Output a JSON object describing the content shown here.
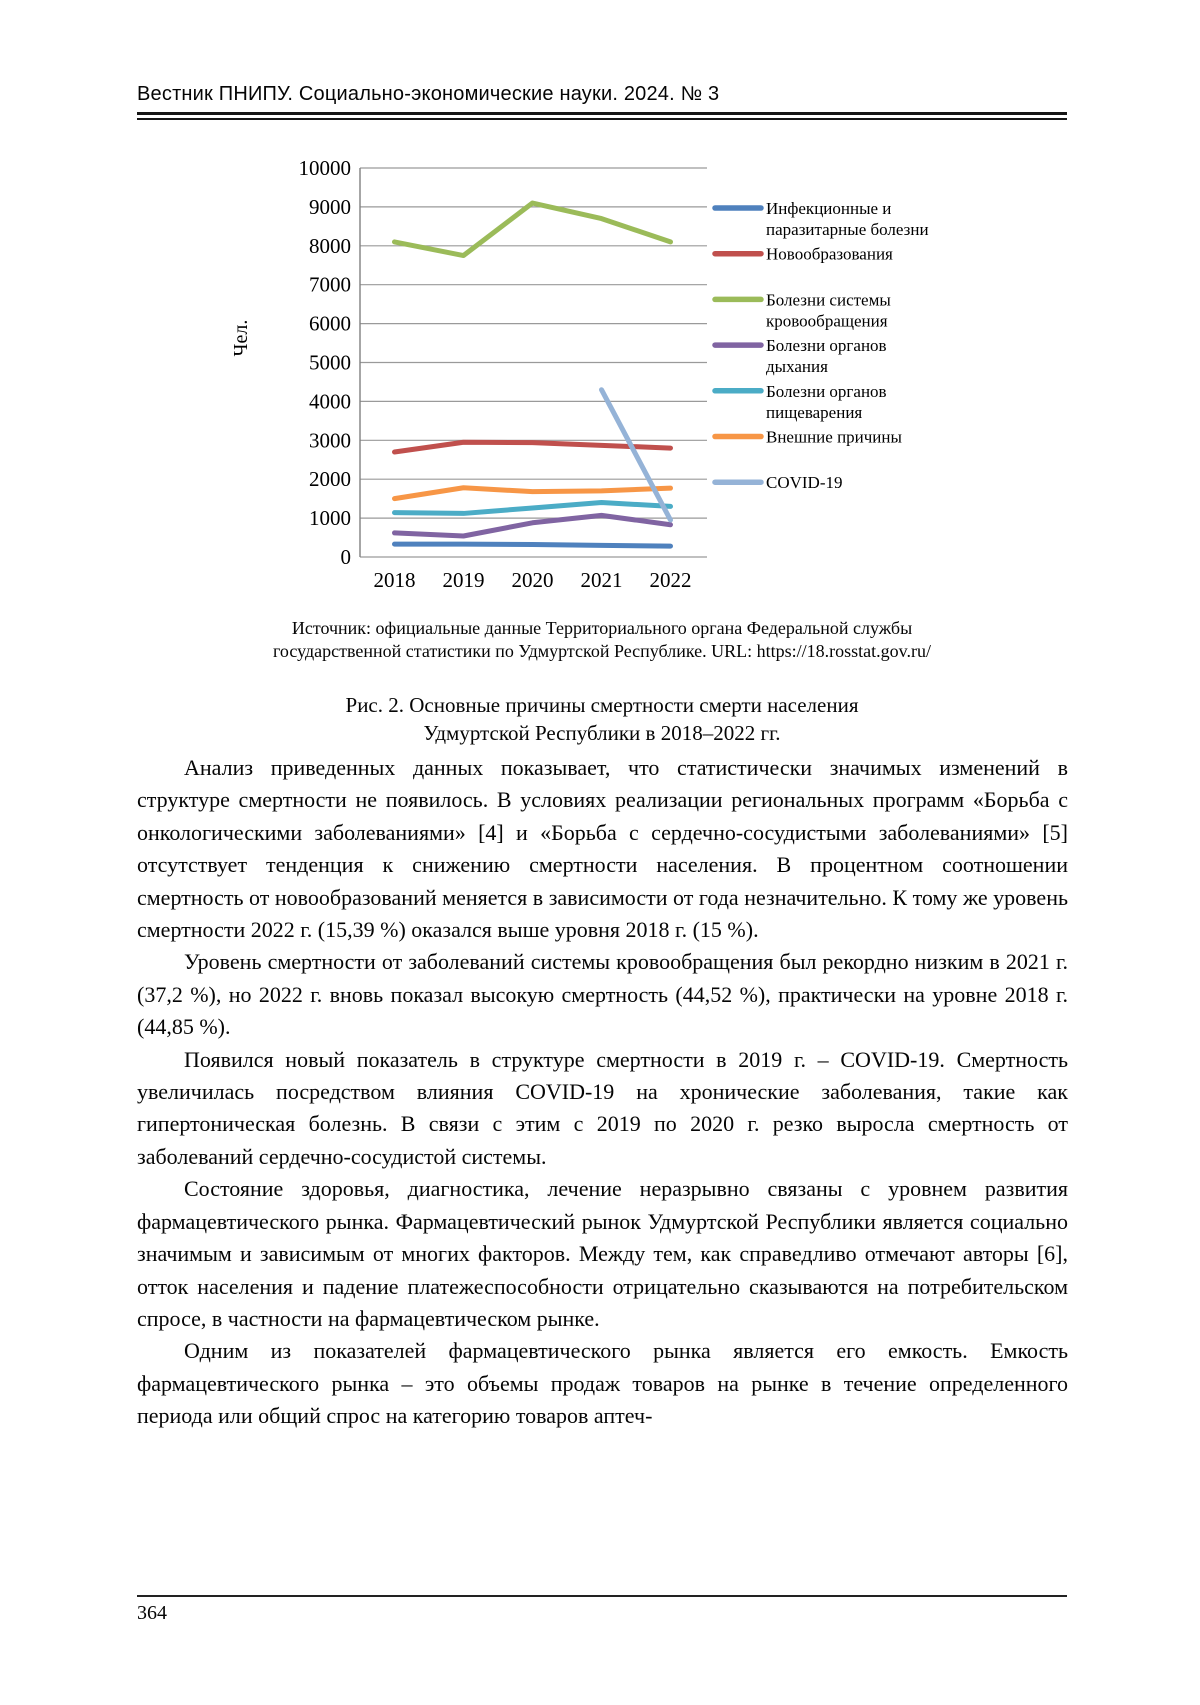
{
  "page": {
    "header": "Вестник ПНИПУ. Социально-экономические науки. 2024. № 3",
    "page_number": "364"
  },
  "figure": {
    "source_line1": "Источник: официальные данные Территориального органа Федеральной службы",
    "source_line2": "государственной статистики по Удмуртской Республике. URL: https://18.rosstat.gov.ru/",
    "caption_line1": "Рис. 2. Основные причины смертности смерти населения",
    "caption_line2": "Удмуртской Республики в 2018–2022 гг."
  },
  "chart_data": {
    "type": "line",
    "title": "",
    "xlabel": "",
    "ylabel": "Чел.",
    "categories": [
      "2018",
      "2019",
      "2020",
      "2021",
      "2022"
    ],
    "ylim": [
      0,
      10000
    ],
    "ytick_step": 1000,
    "grid": true,
    "legend_position": "right",
    "axis_color": "#808080",
    "grid_color": "#9a9a9a",
    "series": [
      {
        "name": "Инфекционные и паразитарные болезни",
        "legend_lines": [
          "Инфекционные и",
          "паразитарные болезни"
        ],
        "color": "#4F81BD",
        "values": [
          330,
          330,
          320,
          300,
          280
        ]
      },
      {
        "name": "Новообразования",
        "legend_lines": [
          "Новообразования"
        ],
        "color": "#C0504D",
        "values": [
          2700,
          2950,
          2940,
          2870,
          2800
        ]
      },
      {
        "name": "Болезни системы кровообращения",
        "legend_lines": [
          "Болезни системы",
          "кровообращения"
        ],
        "color": "#9BBB59",
        "values": [
          8100,
          7750,
          9100,
          8700,
          8100
        ]
      },
      {
        "name": "Болезни органов дыхания",
        "legend_lines": [
          "Болезни органов",
          "дыхания"
        ],
        "color": "#8064A2",
        "values": [
          620,
          540,
          880,
          1070,
          830
        ]
      },
      {
        "name": "Болезни органов пищеварения",
        "legend_lines": [
          "Болезни органов",
          "пищеварения"
        ],
        "color": "#4BACC6",
        "values": [
          1140,
          1120,
          1260,
          1400,
          1300
        ]
      },
      {
        "name": "Внешние причины",
        "legend_lines": [
          "Внешние причины"
        ],
        "color": "#F79646",
        "values": [
          1500,
          1780,
          1680,
          1700,
          1770
        ]
      },
      {
        "name": "COVID-19",
        "legend_lines": [
          "COVID-19"
        ],
        "color": "#95B3D7",
        "values": [
          null,
          null,
          null,
          4300,
          950
        ]
      }
    ]
  },
  "body": {
    "paragraphs": [
      "Анализ приведенных данных показывает, что статистически значимых изменений в структуре смертности не появилось. В условиях реализации региональных программ «Борьба с онкологическими заболеваниями» [4] и «Борьба с сердечно-сосудистыми заболеваниями» [5] отсутствует тенденция к снижению смертности населения. В процентном соотношении смертность от новообразований меняется в зависимости от года незначительно. К тому же уровень смертности 2022 г. (15,39 %) оказался выше уровня 2018 г. (15 %).",
      "Уровень смертности от заболеваний системы кровообращения был рекордно низким в 2021 г. (37,2 %), но 2022 г. вновь показал высокую смертность (44,52 %), практически на уровне 2018 г. (44,85 %).",
      "Появился новый показатель в структуре смертности в 2019 г. – COVID-19. Смертность увеличилась посредством влияния COVID-19 на хронические заболевания, такие как гипертоническая болезнь. В связи с этим с 2019 по 2020 г. резко выросла смертность от заболеваний сердечно-сосудистой системы.",
      "Состояние здоровья, диагностика, лечение неразрывно связаны с уровнем развития фармацевтического рынка. Фармацевтический рынок Удмуртской Республики является социально значимым и зависимым от многих факторов. Между тем, как справедливо отмечают авторы [6], отток населения и падение платежеспособности отрицательно сказываются на потребительском спросе, в частности на фармацевтическом рынке.",
      "Одним из показателей фармацевтического рынка является его емкость. Емкость фармацевтического рынка – это объемы продаж товаров на рынке в течение определенного периода или общий спрос на категорию товаров аптеч-"
    ]
  }
}
